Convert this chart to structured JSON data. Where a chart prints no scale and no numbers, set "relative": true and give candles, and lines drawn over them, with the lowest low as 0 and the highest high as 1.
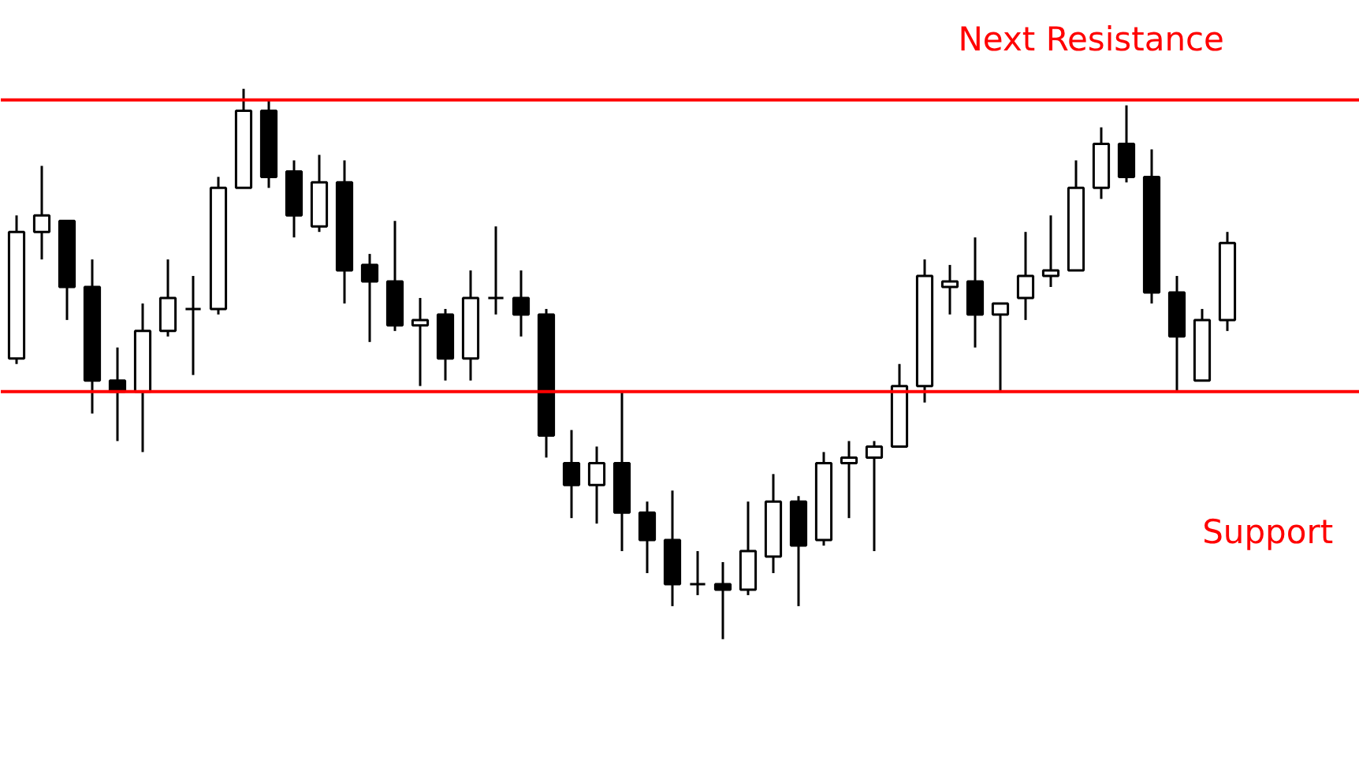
{
  "chart_data": {
    "type": "candlestick",
    "relative": true,
    "categories": [
      null,
      null,
      null,
      null,
      null,
      null,
      null,
      null,
      null,
      null,
      null,
      null,
      null,
      null,
      null,
      null,
      null,
      null,
      null,
      null,
      null,
      null,
      null,
      null,
      null,
      null,
      null,
      null,
      null,
      null,
      null,
      null,
      null,
      null,
      null,
      null,
      null,
      null,
      null,
      null,
      null,
      null,
      null,
      null,
      null,
      null,
      null,
      null,
      null
    ],
    "ohlc": [
      [
        0.51,
        0.77,
        0.5,
        0.74
      ],
      [
        0.74,
        0.86,
        0.69,
        0.77
      ],
      [
        0.76,
        0.76,
        0.58,
        0.64
      ],
      [
        0.64,
        0.69,
        0.41,
        0.47
      ],
      [
        0.47,
        0.53,
        0.36,
        0.45
      ],
      [
        0.45,
        0.61,
        0.34,
        0.56
      ],
      [
        0.56,
        0.69,
        0.55,
        0.62
      ],
      [
        0.6,
        0.66,
        0.48,
        0.6
      ],
      [
        0.6,
        0.84,
        0.59,
        0.82
      ],
      [
        0.82,
        1.0,
        0.82,
        0.96
      ],
      [
        0.96,
        0.98,
        0.82,
        0.84
      ],
      [
        0.85,
        0.87,
        0.73,
        0.77
      ],
      [
        0.75,
        0.88,
        0.74,
        0.83
      ],
      [
        0.83,
        0.87,
        0.61,
        0.67
      ],
      [
        0.68,
        0.7,
        0.54,
        0.65
      ],
      [
        0.65,
        0.76,
        0.56,
        0.57
      ],
      [
        0.57,
        0.62,
        0.46,
        0.58
      ],
      [
        0.59,
        0.6,
        0.47,
        0.51
      ],
      [
        0.51,
        0.67,
        0.47,
        0.62
      ],
      [
        0.62,
        0.75,
        0.59,
        0.62
      ],
      [
        0.62,
        0.67,
        0.55,
        0.59
      ],
      [
        0.59,
        0.6,
        0.33,
        0.37
      ],
      [
        0.32,
        0.38,
        0.22,
        0.28
      ],
      [
        0.28,
        0.35,
        0.21,
        0.32
      ],
      [
        0.32,
        0.45,
        0.16,
        0.23
      ],
      [
        0.23,
        0.25,
        0.12,
        0.18
      ],
      [
        0.18,
        0.27,
        0.06,
        0.1
      ],
      [
        0.1,
        0.16,
        0.08,
        0.1
      ],
      [
        0.1,
        0.14,
        0.0,
        0.09
      ],
      [
        0.09,
        0.25,
        0.08,
        0.16
      ],
      [
        0.15,
        0.3,
        0.12,
        0.25
      ],
      [
        0.25,
        0.26,
        0.06,
        0.17
      ],
      [
        0.18,
        0.34,
        0.17,
        0.32
      ],
      [
        0.32,
        0.36,
        0.22,
        0.33
      ],
      [
        0.33,
        0.36,
        0.16,
        0.35
      ],
      [
        0.35,
        0.5,
        0.35,
        0.46
      ],
      [
        0.46,
        0.69,
        0.43,
        0.66
      ],
      [
        0.64,
        0.68,
        0.59,
        0.65
      ],
      [
        0.65,
        0.73,
        0.53,
        0.59
      ],
      [
        0.59,
        0.61,
        0.45,
        0.61
      ],
      [
        0.62,
        0.74,
        0.58,
        0.66
      ],
      [
        0.66,
        0.77,
        0.64,
        0.67
      ],
      [
        0.67,
        0.87,
        0.67,
        0.82
      ],
      [
        0.82,
        0.93,
        0.8,
        0.9
      ],
      [
        0.9,
        0.97,
        0.83,
        0.84
      ],
      [
        0.84,
        0.89,
        0.61,
        0.63
      ],
      [
        0.63,
        0.66,
        0.45,
        0.55
      ],
      [
        0.47,
        0.6,
        0.47,
        0.58
      ],
      [
        0.58,
        0.74,
        0.56,
        0.72
      ]
    ],
    "ref_lines": [
      {
        "axis": "y",
        "value": 0.98,
        "label": "Next Resistance",
        "color": "#ff0000"
      },
      {
        "axis": "y",
        "value": 0.45,
        "label": "Support",
        "color": "#ff0000"
      }
    ]
  }
}
